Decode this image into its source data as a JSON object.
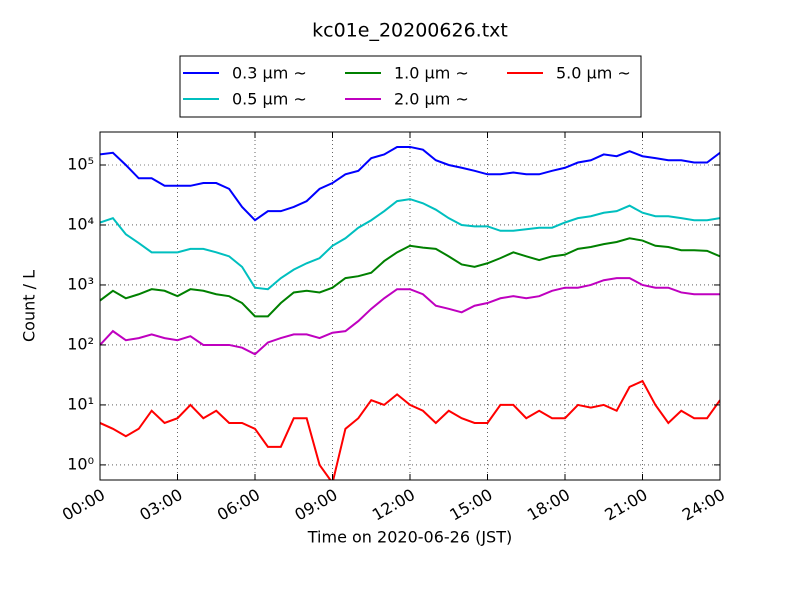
{
  "chart_data": {
    "type": "line",
    "title": "kc01e_20200626.txt",
    "x_label": "Time on 2020-06-26 (JST)",
    "y_label": "Count / L",
    "log_y": true,
    "grid": true,
    "legend": "upper center",
    "x": [
      0,
      0.5,
      1,
      1.5,
      2,
      2.5,
      3,
      3.5,
      4,
      4.5,
      5,
      5.5,
      6,
      6.5,
      7,
      7.5,
      8,
      8.5,
      9,
      9.5,
      10,
      10.5,
      11,
      11.5,
      12,
      12.5,
      13,
      13.5,
      14,
      14.5,
      15,
      15.5,
      16,
      16.5,
      17,
      17.5,
      18,
      18.5,
      19,
      19.5,
      20,
      20.5,
      21,
      21.5,
      22,
      22.5,
      23,
      23.5,
      24
    ],
    "xlim": [
      0,
      24
    ],
    "xticks": [
      {
        "value": 0,
        "label": "00:00"
      },
      {
        "value": 3,
        "label": "03:00"
      },
      {
        "value": 6,
        "label": "06:00"
      },
      {
        "value": 9,
        "label": "09:00"
      },
      {
        "value": 12,
        "label": "12:00"
      },
      {
        "value": 15,
        "label": "15:00"
      },
      {
        "value": 18,
        "label": "18:00"
      },
      {
        "value": 21,
        "label": "21:00"
      },
      {
        "value": 24,
        "label": "24:00"
      }
    ],
    "ylim": [
      0.56,
      355000
    ],
    "yticks": [
      {
        "value": 1,
        "label": "10⁰"
      },
      {
        "value": 10,
        "label": "10¹"
      },
      {
        "value": 100,
        "label": "10²"
      },
      {
        "value": 1000,
        "label": "10³"
      },
      {
        "value": 10000,
        "label": "10⁴"
      },
      {
        "value": 100000,
        "label": "10⁵"
      }
    ],
    "series": [
      {
        "name": "0.3 μm ~",
        "color": "#0000ff",
        "values": [
          150000,
          160000,
          100000,
          60000,
          60000,
          45000,
          45000,
          45000,
          50000,
          50000,
          40000,
          20000,
          12000,
          17000,
          17000,
          20000,
          25000,
          40000,
          50000,
          70000,
          80000,
          130000,
          150000,
          200000,
          200000,
          180000,
          120000,
          100000,
          90000,
          80000,
          70000,
          70000,
          75000,
          70000,
          70000,
          80000,
          90000,
          110000,
          120000,
          150000,
          140000,
          170000,
          140000,
          130000,
          120000,
          120000,
          110000,
          110000,
          160000
        ]
      },
      {
        "name": "0.5 μm ~",
        "color": "#00bfbf",
        "values": [
          11000,
          13000,
          7000,
          5000,
          3500,
          3500,
          3500,
          4000,
          4000,
          3500,
          3000,
          2000,
          900,
          850,
          1300,
          1800,
          2300,
          2800,
          4500,
          6000,
          9000,
          12000,
          17000,
          25000,
          27000,
          23000,
          18000,
          13000,
          10000,
          9500,
          9500,
          8000,
          8000,
          8500,
          9000,
          9000,
          11000,
          13000,
          14000,
          16000,
          17000,
          21000,
          16000,
          14000,
          14000,
          13000,
          12000,
          12000,
          13000
        ]
      },
      {
        "name": "1.0 μm ~",
        "color": "#008000",
        "values": [
          550,
          800,
          600,
          700,
          850,
          800,
          650,
          850,
          800,
          700,
          650,
          500,
          300,
          300,
          500,
          750,
          800,
          750,
          900,
          1300,
          1400,
          1600,
          2500,
          3500,
          4500,
          4200,
          4000,
          3000,
          2200,
          2000,
          2300,
          2800,
          3500,
          3000,
          2600,
          3000,
          3200,
          4000,
          4300,
          4800,
          5200,
          6000,
          5500,
          4500,
          4300,
          3800,
          3800,
          3700,
          3000
        ]
      },
      {
        "name": "2.0 μm ~",
        "color": "#bf00bf",
        "values": [
          100,
          170,
          120,
          130,
          150,
          130,
          120,
          140,
          100,
          100,
          100,
          90,
          70,
          110,
          130,
          150,
          150,
          130,
          160,
          170,
          250,
          400,
          600,
          850,
          850,
          700,
          450,
          400,
          350,
          450,
          500,
          600,
          650,
          600,
          650,
          800,
          900,
          900,
          1000,
          1200,
          1300,
          1300,
          1000,
          900,
          900,
          750,
          700,
          700,
          700
        ]
      },
      {
        "name": "5.0 μm ~",
        "color": "#ff0000",
        "values": [
          5,
          4,
          3,
          4,
          8,
          5,
          6,
          10,
          6,
          8,
          5,
          5,
          4,
          2,
          2,
          6,
          6,
          1,
          0.5,
          4,
          6,
          12,
          10,
          15,
          10,
          8,
          5,
          8,
          6,
          5,
          5,
          10,
          10,
          6,
          8,
          6,
          6,
          10,
          9,
          10,
          8,
          20,
          25,
          10,
          5,
          8,
          6,
          6,
          12
        ]
      }
    ]
  }
}
